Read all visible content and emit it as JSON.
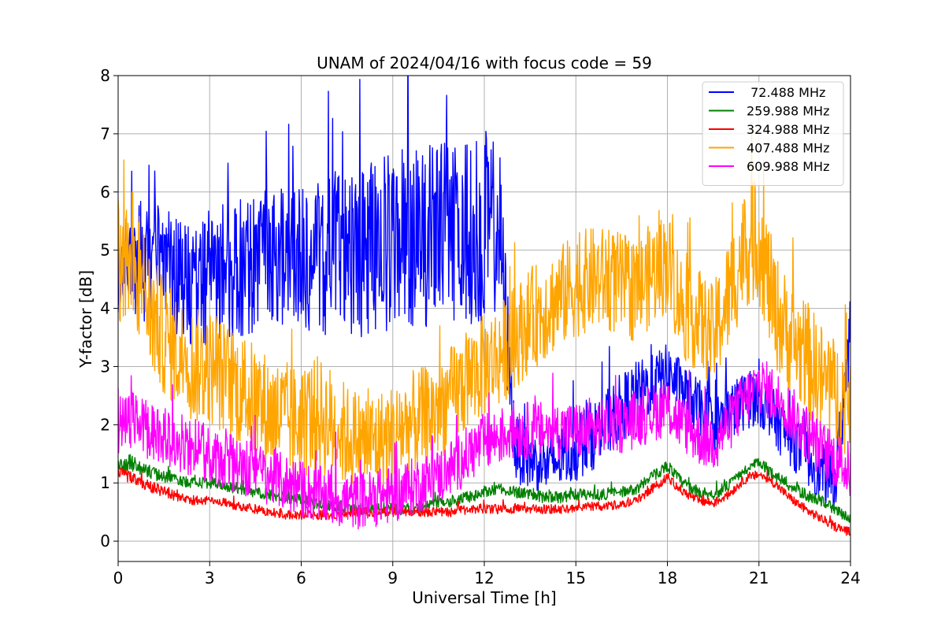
{
  "chart_data": {
    "type": "line",
    "title": "UNAM of 2024/04/16 with focus code = 59",
    "xlabel": "Universal Time [h]",
    "ylabel": "Y-factor [dB]",
    "xlim": [
      0,
      24
    ],
    "ylim": [
      -0.35,
      8
    ],
    "xticks": [
      0,
      3,
      6,
      9,
      12,
      15,
      18,
      21,
      24
    ],
    "yticks": [
      0,
      1,
      2,
      3,
      4,
      5,
      6,
      7,
      8
    ],
    "grid": true,
    "legend_position": "top-right",
    "series": [
      {
        "name": " 72.488 MHz",
        "color": "#0000ff",
        "x": [
          0.0,
          0.5,
          1.0,
          1.5,
          2.0,
          2.5,
          3.0,
          3.5,
          4.0,
          4.5,
          5.0,
          5.5,
          6.0,
          6.5,
          7.0,
          7.5,
          8.0,
          8.5,
          9.0,
          9.5,
          10.0,
          10.5,
          11.0,
          11.5,
          12.0,
          12.5,
          13.0,
          13.5,
          14.0,
          14.5,
          15.0,
          15.5,
          16.0,
          16.5,
          17.0,
          17.5,
          18.0,
          18.5,
          19.0,
          19.5,
          20.0,
          20.5,
          21.0,
          21.5,
          22.0,
          22.5,
          23.0,
          23.5,
          24.0
        ],
        "y": [
          4.5,
          4.8,
          4.8,
          4.8,
          4.5,
          4.4,
          4.5,
          4.6,
          4.7,
          4.8,
          4.9,
          4.9,
          4.9,
          4.9,
          4.9,
          4.9,
          5.0,
          5.1,
          5.2,
          5.2,
          5.2,
          5.3,
          5.3,
          5.3,
          5.4,
          5.4,
          1.6,
          1.4,
          1.3,
          1.4,
          1.6,
          1.8,
          2.0,
          2.3,
          2.5,
          2.7,
          2.9,
          2.6,
          2.3,
          2.0,
          2.2,
          2.4,
          2.5,
          2.1,
          1.8,
          1.5,
          1.2,
          1.0,
          3.5
        ],
        "noise": [
          1.1,
          1.1,
          1.0,
          1.0,
          1.0,
          1.1,
          1.1,
          1.2,
          1.2,
          1.2,
          1.2,
          1.2,
          1.3,
          1.3,
          1.4,
          1.4,
          1.5,
          1.5,
          1.6,
          1.6,
          1.6,
          1.6,
          1.6,
          1.6,
          1.7,
          1.4,
          0.6,
          0.5,
          0.5,
          0.5,
          0.6,
          0.6,
          0.6,
          0.6,
          0.6,
          0.5,
          0.5,
          0.5,
          0.5,
          0.5,
          0.5,
          0.5,
          0.5,
          0.5,
          0.5,
          0.5,
          0.5,
          0.5,
          0.9
        ]
      },
      {
        "name": "259.988 MHz",
        "color": "#008000",
        "x": [
          0.0,
          0.5,
          1.0,
          1.5,
          2.0,
          2.5,
          3.0,
          3.5,
          4.0,
          4.5,
          5.0,
          5.5,
          6.0,
          6.5,
          7.0,
          7.5,
          8.0,
          8.5,
          9.0,
          9.5,
          10.0,
          10.5,
          11.0,
          11.5,
          12.0,
          12.5,
          13.0,
          13.5,
          14.0,
          14.5,
          15.0,
          15.5,
          16.0,
          16.5,
          17.0,
          17.5,
          18.0,
          18.5,
          19.0,
          19.5,
          20.0,
          20.5,
          21.0,
          21.5,
          22.0,
          22.5,
          23.0,
          23.5,
          24.0
        ],
        "y": [
          1.3,
          1.35,
          1.2,
          1.1,
          1.05,
          1.0,
          1.0,
          0.95,
          0.9,
          0.85,
          0.8,
          0.75,
          0.7,
          0.65,
          0.6,
          0.55,
          0.55,
          0.55,
          0.55,
          0.55,
          0.6,
          0.65,
          0.7,
          0.75,
          0.85,
          0.9,
          0.85,
          0.8,
          0.75,
          0.75,
          0.8,
          0.8,
          0.8,
          0.85,
          0.9,
          1.1,
          1.3,
          1.0,
          0.85,
          0.8,
          0.95,
          1.2,
          1.35,
          1.15,
          0.95,
          0.8,
          0.7,
          0.55,
          0.35
        ],
        "noise": [
          0.15,
          0.15,
          0.12,
          0.1,
          0.1,
          0.1,
          0.1,
          0.1,
          0.1,
          0.1,
          0.1,
          0.1,
          0.1,
          0.1,
          0.1,
          0.1,
          0.1,
          0.1,
          0.1,
          0.1,
          0.1,
          0.1,
          0.1,
          0.1,
          0.1,
          0.1,
          0.1,
          0.1,
          0.1,
          0.1,
          0.1,
          0.1,
          0.1,
          0.1,
          0.1,
          0.1,
          0.1,
          0.1,
          0.1,
          0.1,
          0.1,
          0.1,
          0.1,
          0.1,
          0.1,
          0.1,
          0.1,
          0.1,
          0.1
        ]
      },
      {
        "name": "324.988 MHz",
        "color": "#ff0000",
        "x": [
          0.0,
          0.5,
          1.0,
          1.5,
          2.0,
          2.5,
          3.0,
          3.5,
          4.0,
          4.5,
          5.0,
          5.5,
          6.0,
          6.5,
          7.0,
          7.5,
          8.0,
          8.5,
          9.0,
          9.5,
          10.0,
          10.5,
          11.0,
          11.5,
          12.0,
          12.5,
          13.0,
          13.5,
          14.0,
          14.5,
          15.0,
          15.5,
          16.0,
          16.5,
          17.0,
          17.5,
          18.0,
          18.5,
          19.0,
          19.5,
          20.0,
          20.5,
          21.0,
          21.5,
          22.0,
          22.5,
          23.0,
          23.5,
          24.0
        ],
        "y": [
          1.15,
          1.1,
          0.95,
          0.85,
          0.75,
          0.7,
          0.7,
          0.65,
          0.6,
          0.55,
          0.5,
          0.45,
          0.45,
          0.45,
          0.45,
          0.5,
          0.5,
          0.5,
          0.5,
          0.5,
          0.5,
          0.5,
          0.5,
          0.55,
          0.55,
          0.55,
          0.55,
          0.55,
          0.55,
          0.55,
          0.55,
          0.6,
          0.6,
          0.65,
          0.7,
          0.9,
          1.1,
          0.85,
          0.7,
          0.65,
          0.8,
          1.05,
          1.15,
          1.0,
          0.75,
          0.55,
          0.4,
          0.25,
          0.15
        ],
        "noise": [
          0.12,
          0.12,
          0.1,
          0.1,
          0.08,
          0.08,
          0.08,
          0.08,
          0.08,
          0.08,
          0.08,
          0.08,
          0.08,
          0.08,
          0.08,
          0.08,
          0.08,
          0.08,
          0.08,
          0.08,
          0.08,
          0.08,
          0.08,
          0.08,
          0.08,
          0.08,
          0.08,
          0.08,
          0.08,
          0.08,
          0.08,
          0.08,
          0.08,
          0.08,
          0.08,
          0.08,
          0.08,
          0.08,
          0.08,
          0.08,
          0.08,
          0.08,
          0.08,
          0.08,
          0.08,
          0.08,
          0.08,
          0.08,
          0.08
        ]
      },
      {
        "name": "407.488 MHz",
        "color": "#ffa500",
        "x": [
          0.0,
          0.5,
          1.0,
          1.5,
          2.0,
          2.5,
          3.0,
          3.5,
          4.0,
          4.5,
          5.0,
          5.5,
          6.0,
          6.5,
          7.0,
          7.5,
          8.0,
          8.5,
          9.0,
          9.5,
          10.0,
          10.5,
          11.0,
          11.5,
          12.0,
          12.5,
          13.0,
          13.5,
          14.0,
          14.5,
          15.0,
          15.5,
          16.0,
          16.5,
          17.0,
          17.5,
          18.0,
          18.5,
          19.0,
          19.5,
          20.0,
          20.5,
          21.0,
          21.5,
          22.0,
          22.5,
          23.0,
          23.5,
          24.0
        ],
        "y": [
          5.0,
          5.0,
          4.0,
          3.5,
          3.2,
          3.0,
          3.0,
          2.8,
          2.6,
          2.4,
          2.2,
          2.1,
          2.0,
          2.2,
          2.0,
          1.8,
          1.7,
          1.7,
          1.8,
          2.0,
          2.1,
          2.3,
          2.5,
          2.8,
          3.0,
          3.2,
          3.5,
          3.8,
          4.0,
          4.2,
          4.4,
          4.5,
          4.5,
          4.4,
          4.3,
          4.6,
          4.8,
          4.0,
          3.8,
          3.5,
          4.2,
          5.0,
          5.2,
          4.0,
          3.5,
          3.2,
          2.8,
          2.5,
          2.5
        ],
        "noise": [
          1.3,
          1.2,
          1.1,
          1.0,
          1.0,
          1.0,
          1.0,
          1.0,
          1.0,
          1.0,
          1.0,
          1.0,
          1.0,
          1.0,
          1.0,
          0.9,
          0.9,
          0.9,
          0.9,
          0.9,
          0.9,
          0.9,
          0.9,
          0.9,
          0.9,
          0.9,
          0.9,
          0.9,
          0.9,
          0.9,
          0.9,
          0.9,
          0.9,
          0.9,
          0.9,
          0.9,
          0.9,
          0.9,
          0.9,
          0.9,
          1.0,
          1.0,
          1.1,
          1.0,
          1.0,
          1.0,
          1.0,
          1.0,
          1.0
        ]
      },
      {
        "name": "609.988 MHz",
        "color": "#ff00ff",
        "x": [
          0.0,
          0.5,
          1.0,
          1.5,
          2.0,
          2.5,
          3.0,
          3.5,
          4.0,
          4.5,
          5.0,
          5.5,
          6.0,
          6.5,
          7.0,
          7.5,
          8.0,
          8.5,
          9.0,
          9.5,
          10.0,
          10.5,
          11.0,
          11.5,
          12.0,
          12.5,
          13.0,
          13.5,
          14.0,
          14.5,
          15.0,
          15.5,
          16.0,
          16.5,
          17.0,
          17.5,
          18.0,
          18.5,
          19.0,
          19.5,
          20.0,
          20.5,
          21.0,
          21.5,
          22.0,
          22.5,
          23.0,
          23.5,
          24.0
        ],
        "y": [
          2.0,
          2.1,
          1.9,
          1.8,
          1.7,
          1.6,
          1.5,
          1.4,
          1.3,
          1.2,
          1.1,
          1.0,
          0.9,
          0.8,
          0.75,
          0.7,
          0.7,
          0.75,
          0.8,
          0.9,
          1.0,
          1.1,
          1.3,
          1.5,
          1.7,
          1.8,
          1.9,
          1.9,
          1.9,
          1.9,
          1.9,
          1.9,
          2.0,
          2.0,
          2.1,
          2.2,
          2.3,
          2.0,
          1.8,
          1.7,
          2.0,
          2.4,
          2.7,
          2.5,
          2.2,
          1.9,
          1.6,
          1.4,
          1.2
        ],
        "noise": [
          0.5,
          0.5,
          0.5,
          0.5,
          0.5,
          0.5,
          0.5,
          0.5,
          0.5,
          0.5,
          0.5,
          0.5,
          0.5,
          0.5,
          0.5,
          0.5,
          0.5,
          0.5,
          0.5,
          0.5,
          0.5,
          0.5,
          0.5,
          0.5,
          0.5,
          0.5,
          0.5,
          0.5,
          0.5,
          0.5,
          0.5,
          0.5,
          0.5,
          0.5,
          0.5,
          0.5,
          0.5,
          0.5,
          0.5,
          0.5,
          0.5,
          0.5,
          0.5,
          0.5,
          0.5,
          0.5,
          0.5,
          0.5,
          0.5
        ]
      }
    ]
  }
}
